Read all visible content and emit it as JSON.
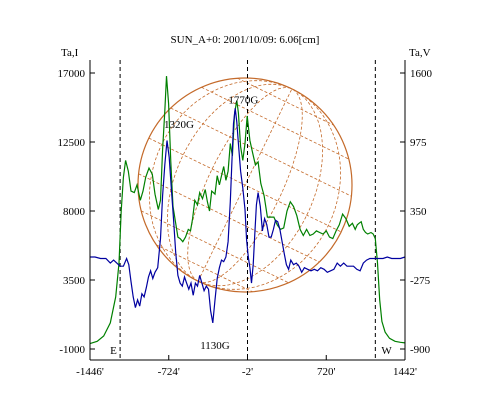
{
  "chart_data": {
    "type": "line",
    "title": "SUN_A+0: 2001/10/09: 6.06[cm]",
    "left_axis": {
      "label": "Ta,I",
      "ticks": [
        17000,
        12500,
        8000,
        3500,
        -1000
      ],
      "tick_labels": [
        "17000",
        "12500",
        "8000",
        "3500",
        "-1000"
      ],
      "range": [
        -1000,
        17000
      ]
    },
    "right_axis": {
      "label": "Ta,V",
      "ticks": [
        1600,
        975,
        350,
        -275,
        -900
      ],
      "tick_labels": [
        "1600",
        "975",
        "350",
        "-275",
        "-900"
      ],
      "range": [
        -900,
        1600
      ]
    },
    "x_axis": {
      "ticks": [
        -1446,
        -724,
        -2,
        720,
        1442
      ],
      "tick_labels": [
        "-1446'",
        "-724'",
        "-2'",
        "720'",
        "1442'"
      ],
      "range": [
        -1446,
        1442
      ]
    },
    "limb_markers": [
      {
        "x": -1170,
        "label": "E"
      },
      {
        "x": 1170,
        "label": "W"
      }
    ],
    "center_marker_x": -2,
    "annotations": [
      {
        "text": "1320G",
        "x": -630,
        "y": 13400,
        "axis": "left"
      },
      {
        "text": "1770G",
        "x": -40,
        "y": 15000,
        "axis": "left"
      },
      {
        "text": "1130G",
        "x": -300,
        "y": -1000,
        "axis": "left"
      }
    ],
    "series": [
      {
        "axis": "left",
        "color": "#008000",
        "points": [
          [
            -1446,
            -650
          ],
          [
            -1380,
            -500
          ],
          [
            -1320,
            -150
          ],
          [
            -1260,
            700
          ],
          [
            -1210,
            2400
          ],
          [
            -1180,
            4600
          ],
          [
            -1160,
            8000
          ],
          [
            -1140,
            10200
          ],
          [
            -1120,
            11300
          ],
          [
            -1095,
            10600
          ],
          [
            -1070,
            9300
          ],
          [
            -1040,
            9200
          ],
          [
            -1015,
            9700
          ],
          [
            -985,
            8700
          ],
          [
            -960,
            9300
          ],
          [
            -935,
            10200
          ],
          [
            -905,
            10800
          ],
          [
            -875,
            10400
          ],
          [
            -850,
            9100
          ],
          [
            -820,
            8100
          ],
          [
            -800,
            8700
          ],
          [
            -780,
            12000
          ],
          [
            -760,
            14500
          ],
          [
            -745,
            16800
          ],
          [
            -725,
            15000
          ],
          [
            -705,
            11200
          ],
          [
            -685,
            8300
          ],
          [
            -660,
            7200
          ],
          [
            -640,
            6300
          ],
          [
            -620,
            6200
          ],
          [
            -595,
            6000
          ],
          [
            -570,
            6300
          ],
          [
            -545,
            6800
          ],
          [
            -525,
            6700
          ],
          [
            -505,
            7500
          ],
          [
            -485,
            8700
          ],
          [
            -460,
            8400
          ],
          [
            -440,
            9200
          ],
          [
            -415,
            8800
          ],
          [
            -390,
            9400
          ],
          [
            -370,
            8600
          ],
          [
            -350,
            8000
          ],
          [
            -330,
            9300
          ],
          [
            -300,
            9100
          ],
          [
            -280,
            10300
          ],
          [
            -260,
            9700
          ],
          [
            -240,
            10300
          ],
          [
            -220,
            10900
          ],
          [
            -200,
            10000
          ],
          [
            -180,
            10600
          ],
          [
            -160,
            12400
          ],
          [
            -140,
            11600
          ],
          [
            -120,
            14400
          ],
          [
            -100,
            15200
          ],
          [
            -85,
            14400
          ],
          [
            -65,
            12200
          ],
          [
            -45,
            11300
          ],
          [
            -25,
            12400
          ],
          [
            -5,
            14200
          ],
          [
            20,
            12600
          ],
          [
            45,
            11800
          ],
          [
            70,
            11000
          ],
          [
            95,
            11200
          ],
          [
            120,
            9800
          ],
          [
            150,
            9000
          ],
          [
            180,
            7600
          ],
          [
            210,
            7600
          ],
          [
            240,
            7600
          ],
          [
            270,
            7100
          ],
          [
            300,
            6800
          ],
          [
            330,
            6900
          ],
          [
            360,
            8000
          ],
          [
            390,
            8600
          ],
          [
            420,
            8300
          ],
          [
            450,
            7700
          ],
          [
            480,
            6800
          ],
          [
            510,
            6400
          ],
          [
            540,
            6800
          ],
          [
            570,
            6400
          ],
          [
            600,
            6500
          ],
          [
            630,
            6700
          ],
          [
            660,
            6600
          ],
          [
            690,
            6500
          ],
          [
            720,
            6700
          ],
          [
            750,
            6300
          ],
          [
            780,
            6200
          ],
          [
            810,
            6700
          ],
          [
            840,
            7100
          ],
          [
            870,
            7800
          ],
          [
            900,
            7500
          ],
          [
            930,
            7000
          ],
          [
            960,
            7200
          ],
          [
            985,
            6800
          ],
          [
            1005,
            7100
          ],
          [
            1020,
            7200
          ],
          [
            1040,
            7300
          ],
          [
            1060,
            6800
          ],
          [
            1080,
            6600
          ],
          [
            1100,
            6500
          ],
          [
            1130,
            6600
          ],
          [
            1150,
            6500
          ],
          [
            1170,
            6200
          ],
          [
            1190,
            4600
          ],
          [
            1210,
            2200
          ],
          [
            1230,
            800
          ],
          [
            1260,
            100
          ],
          [
            1300,
            -300
          ],
          [
            1350,
            -500
          ],
          [
            1400,
            -560
          ],
          [
            1442,
            -600
          ]
        ]
      },
      {
        "axis": "left",
        "color": "#0000a0",
        "points": [
          [
            -1446,
            5000
          ],
          [
            -1400,
            5000
          ],
          [
            -1350,
            4900
          ],
          [
            -1300,
            4900
          ],
          [
            -1260,
            4600
          ],
          [
            -1230,
            4800
          ],
          [
            -1200,
            4600
          ],
          [
            -1170,
            4400
          ],
          [
            -1140,
            4400
          ],
          [
            -1110,
            4900
          ],
          [
            -1090,
            4500
          ],
          [
            -1070,
            3400
          ],
          [
            -1050,
            2400
          ],
          [
            -1030,
            1700
          ],
          [
            -1010,
            2200
          ],
          [
            -990,
            1800
          ],
          [
            -970,
            2600
          ],
          [
            -950,
            2400
          ],
          [
            -930,
            3000
          ],
          [
            -910,
            3700
          ],
          [
            -890,
            4100
          ],
          [
            -870,
            3600
          ],
          [
            -850,
            4000
          ],
          [
            -825,
            4300
          ],
          [
            -800,
            6200
          ],
          [
            -780,
            9000
          ],
          [
            -760,
            11000
          ],
          [
            -740,
            12600
          ],
          [
            -720,
            11500
          ],
          [
            -700,
            9400
          ],
          [
            -680,
            7500
          ],
          [
            -660,
            5300
          ],
          [
            -640,
            3800
          ],
          [
            -620,
            3300
          ],
          [
            -600,
            3100
          ],
          [
            -580,
            3700
          ],
          [
            -560,
            3300
          ],
          [
            -540,
            2900
          ],
          [
            -520,
            3300
          ],
          [
            -500,
            2500
          ],
          [
            -480,
            3300
          ],
          [
            -460,
            3100
          ],
          [
            -440,
            3800
          ],
          [
            -420,
            3300
          ],
          [
            -400,
            2800
          ],
          [
            -380,
            3100
          ],
          [
            -360,
            2900
          ],
          [
            -340,
            1500
          ],
          [
            -320,
            700
          ],
          [
            -300,
            2200
          ],
          [
            -280,
            3600
          ],
          [
            -260,
            4300
          ],
          [
            -240,
            4800
          ],
          [
            -220,
            4700
          ],
          [
            -200,
            5000
          ],
          [
            -180,
            6000
          ],
          [
            -160,
            8600
          ],
          [
            -145,
            11200
          ],
          [
            -130,
            13700
          ],
          [
            -115,
            14700
          ],
          [
            -100,
            13800
          ],
          [
            -85,
            12400
          ],
          [
            -65,
            10600
          ],
          [
            -45,
            9500
          ],
          [
            -25,
            8100
          ],
          [
            -10,
            6100
          ],
          [
            5,
            5000
          ],
          [
            20,
            4300
          ],
          [
            35,
            3300
          ],
          [
            50,
            4500
          ],
          [
            65,
            6500
          ],
          [
            80,
            8400
          ],
          [
            95,
            9200
          ],
          [
            115,
            8300
          ],
          [
            135,
            6700
          ],
          [
            155,
            7500
          ],
          [
            175,
            7100
          ],
          [
            195,
            6300
          ],
          [
            215,
            6300
          ],
          [
            235,
            6800
          ],
          [
            255,
            7400
          ],
          [
            275,
            7300
          ],
          [
            295,
            6800
          ],
          [
            315,
            6000
          ],
          [
            335,
            5200
          ],
          [
            355,
            4500
          ],
          [
            375,
            4200
          ],
          [
            395,
            4800
          ],
          [
            420,
            4500
          ],
          [
            445,
            4600
          ],
          [
            470,
            4400
          ],
          [
            495,
            4000
          ],
          [
            520,
            4300
          ],
          [
            550,
            4200
          ],
          [
            580,
            4100
          ],
          [
            610,
            4200
          ],
          [
            640,
            4100
          ],
          [
            670,
            4300
          ],
          [
            700,
            4200
          ],
          [
            730,
            4000
          ],
          [
            760,
            4100
          ],
          [
            790,
            4200
          ],
          [
            820,
            4600
          ],
          [
            850,
            4400
          ],
          [
            880,
            4600
          ],
          [
            910,
            4400
          ],
          [
            940,
            4400
          ],
          [
            970,
            4400
          ],
          [
            1000,
            4200
          ],
          [
            1030,
            4100
          ],
          [
            1060,
            4600
          ],
          [
            1090,
            4800
          ],
          [
            1120,
            4900
          ],
          [
            1150,
            4900
          ],
          [
            1180,
            4900
          ],
          [
            1210,
            4900
          ],
          [
            1240,
            4900
          ],
          [
            1280,
            5000
          ],
          [
            1320,
            4900
          ],
          [
            1360,
            4900
          ],
          [
            1400,
            4900
          ],
          [
            1442,
            5000
          ]
        ]
      }
    ],
    "grid": false,
    "legend": "none",
    "colors": {
      "frame": "#000000",
      "solar_grid": "#c46a2a"
    }
  }
}
